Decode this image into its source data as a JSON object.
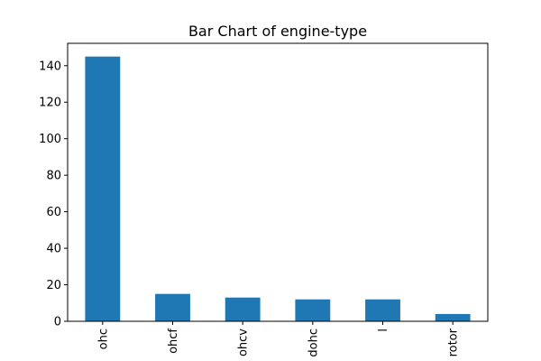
{
  "chart_data": {
    "type": "bar",
    "title": "Bar Chart of engine-type",
    "xlabel": "",
    "ylabel": "",
    "categories": [
      "ohc",
      "ohcf",
      "ohcv",
      "dohc",
      "l",
      "rotor"
    ],
    "values": [
      145,
      15,
      13,
      12,
      12,
      4
    ],
    "ylim": [
      0,
      152.25
    ],
    "yticks": [
      0,
      20,
      40,
      60,
      80,
      100,
      120,
      140
    ],
    "grid": false,
    "bar_color": "#1f77b4"
  }
}
